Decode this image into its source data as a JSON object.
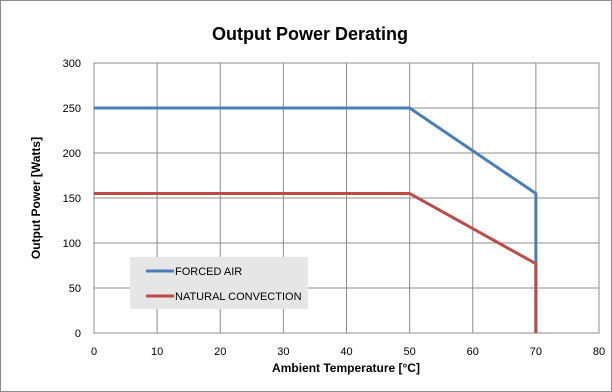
{
  "chart_data": {
    "type": "line",
    "title": "Output Power Derating",
    "xlabel": "Ambient Temperature [°C]",
    "ylabel": "Output Power [Watts]",
    "xlim": [
      0,
      80
    ],
    "ylim": [
      0,
      300
    ],
    "xticks": [
      0,
      10,
      20,
      30,
      40,
      50,
      60,
      70,
      80
    ],
    "yticks": [
      0,
      50,
      100,
      150,
      200,
      250,
      300
    ],
    "grid": true,
    "legend_position": "bottom-left",
    "series": [
      {
        "name": "FORCED AIR",
        "color": "#4a7ebb",
        "points": [
          [
            0,
            250
          ],
          [
            50,
            250
          ],
          [
            70,
            155
          ],
          [
            70,
            0
          ]
        ]
      },
      {
        "name": "NATURAL CONVECTION",
        "color": "#be4b48",
        "points": [
          [
            0,
            155
          ],
          [
            50,
            155
          ],
          [
            70,
            77
          ],
          [
            70,
            0
          ]
        ]
      }
    ]
  }
}
